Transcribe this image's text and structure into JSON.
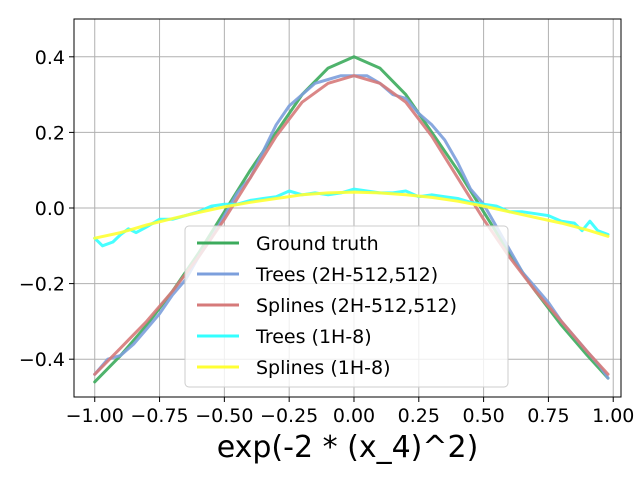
{
  "chart_data": {
    "type": "line",
    "title": "",
    "xlabel": "exp(-2 * (x_4)^2)",
    "ylabel": "",
    "xlim": [
      -1.08,
      1.03
    ],
    "ylim": [
      -0.5,
      0.5
    ],
    "x_ticks": [
      -1.0,
      -0.75,
      -0.5,
      -0.25,
      0.0,
      0.25,
      0.5,
      0.75,
      1.0
    ],
    "x_tick_labels": [
      "−1.00",
      "−0.75",
      "−0.50",
      "−0.25",
      "0.00",
      "0.25",
      "0.50",
      "0.75",
      "1.00"
    ],
    "y_ticks": [
      -0.4,
      -0.2,
      0.0,
      0.2,
      0.4
    ],
    "y_tick_labels": [
      "−0.4",
      "−0.2",
      "0.0",
      "0.2",
      "0.4"
    ],
    "grid": true,
    "legend_position": "lower center",
    "series": [
      {
        "name": "Ground truth",
        "color": "#3cab5c",
        "x": [
          -1.0,
          -0.9,
          -0.8,
          -0.7,
          -0.6,
          -0.5,
          -0.4,
          -0.3,
          -0.2,
          -0.1,
          0.0,
          0.1,
          0.2,
          0.3,
          0.4,
          0.5,
          0.6,
          0.7,
          0.8,
          0.9,
          0.98
        ],
        "y": [
          -0.46,
          -0.39,
          -0.31,
          -0.22,
          -0.12,
          -0.01,
          0.1,
          0.2,
          0.3,
          0.37,
          0.4,
          0.37,
          0.3,
          0.2,
          0.1,
          -0.01,
          -0.12,
          -0.22,
          -0.31,
          -0.39,
          -0.45
        ]
      },
      {
        "name": "Trees (2H-512,512)",
        "color": "#7c9fdc",
        "x": [
          -1.0,
          -0.95,
          -0.9,
          -0.85,
          -0.8,
          -0.75,
          -0.7,
          -0.65,
          -0.6,
          -0.55,
          -0.5,
          -0.45,
          -0.4,
          -0.35,
          -0.3,
          -0.25,
          -0.2,
          -0.15,
          -0.1,
          -0.05,
          0.0,
          0.05,
          0.1,
          0.15,
          0.2,
          0.25,
          0.3,
          0.35,
          0.4,
          0.45,
          0.5,
          0.55,
          0.6,
          0.65,
          0.7,
          0.75,
          0.8,
          0.85,
          0.9,
          0.95,
          0.98
        ],
        "y": [
          -0.44,
          -0.4,
          -0.39,
          -0.36,
          -0.32,
          -0.28,
          -0.23,
          -0.19,
          -0.13,
          -0.08,
          -0.02,
          0.04,
          0.08,
          0.15,
          0.22,
          0.27,
          0.3,
          0.33,
          0.34,
          0.35,
          0.35,
          0.35,
          0.33,
          0.3,
          0.29,
          0.25,
          0.22,
          0.18,
          0.12,
          0.05,
          0.01,
          -0.05,
          -0.11,
          -0.17,
          -0.21,
          -0.25,
          -0.3,
          -0.34,
          -0.38,
          -0.42,
          -0.45
        ]
      },
      {
        "name": "Splines (2H-512,512)",
        "color": "#d67a7a",
        "x": [
          -1.0,
          -0.9,
          -0.8,
          -0.7,
          -0.6,
          -0.5,
          -0.4,
          -0.3,
          -0.2,
          -0.1,
          0.0,
          0.1,
          0.2,
          0.3,
          0.4,
          0.5,
          0.6,
          0.7,
          0.8,
          0.9,
          0.98
        ],
        "y": [
          -0.44,
          -0.37,
          -0.3,
          -0.22,
          -0.13,
          -0.03,
          0.08,
          0.19,
          0.28,
          0.33,
          0.35,
          0.33,
          0.28,
          0.19,
          0.08,
          -0.03,
          -0.13,
          -0.22,
          -0.3,
          -0.38,
          -0.44
        ]
      },
      {
        "name": "Trees (1H-8)",
        "color": "#33ffff",
        "x": [
          -1.0,
          -0.97,
          -0.93,
          -0.9,
          -0.87,
          -0.84,
          -0.8,
          -0.75,
          -0.7,
          -0.65,
          -0.6,
          -0.55,
          -0.5,
          -0.45,
          -0.4,
          -0.35,
          -0.3,
          -0.25,
          -0.2,
          -0.15,
          -0.1,
          -0.05,
          0.0,
          0.05,
          0.1,
          0.15,
          0.2,
          0.25,
          0.3,
          0.35,
          0.4,
          0.45,
          0.5,
          0.55,
          0.6,
          0.65,
          0.7,
          0.75,
          0.8,
          0.85,
          0.88,
          0.91,
          0.94,
          0.98
        ],
        "y": [
          -0.08,
          -0.1,
          -0.09,
          -0.07,
          -0.055,
          -0.065,
          -0.05,
          -0.03,
          -0.03,
          -0.02,
          -0.01,
          0.005,
          0.01,
          0.01,
          0.02,
          0.025,
          0.03,
          0.045,
          0.035,
          0.04,
          0.035,
          0.04,
          0.05,
          0.045,
          0.04,
          0.04,
          0.045,
          0.03,
          0.035,
          0.03,
          0.025,
          0.015,
          0.01,
          0.005,
          -0.01,
          -0.01,
          -0.015,
          -0.02,
          -0.035,
          -0.04,
          -0.06,
          -0.035,
          -0.06,
          -0.07
        ]
      },
      {
        "name": "Splines (1H-8)",
        "color": "#ffff33",
        "x": [
          -1.0,
          -0.9,
          -0.8,
          -0.7,
          -0.6,
          -0.5,
          -0.4,
          -0.3,
          -0.2,
          -0.1,
          0.0,
          0.1,
          0.2,
          0.3,
          0.4,
          0.5,
          0.6,
          0.7,
          0.8,
          0.9,
          0.98
        ],
        "y": [
          -0.08,
          -0.065,
          -0.045,
          -0.028,
          -0.012,
          0.003,
          0.015,
          0.025,
          0.035,
          0.04,
          0.042,
          0.04,
          0.035,
          0.028,
          0.018,
          0.005,
          -0.01,
          -0.025,
          -0.04,
          -0.058,
          -0.075
        ]
      }
    ]
  },
  "colors": {
    "grid": "#b0b0b0",
    "axes": "#000000",
    "background": "#ffffff",
    "legend_border": "#cccccc"
  }
}
